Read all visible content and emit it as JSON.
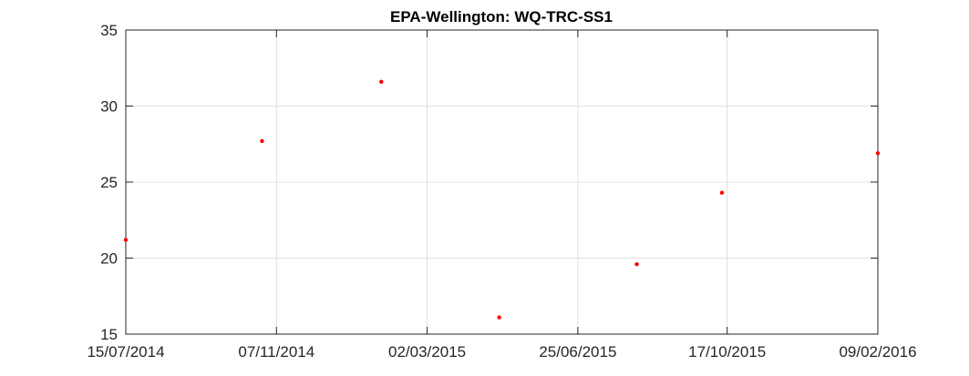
{
  "chart_data": {
    "type": "scatter",
    "title": "EPA-Wellington: WQ-TRC-SS1",
    "xlabel": "",
    "ylabel": "",
    "xlim": [
      "2014-07-15",
      "2016-02-09"
    ],
    "ylim": [
      15,
      35
    ],
    "grid": true,
    "x_ticks": [
      "15/07/2014",
      "07/11/2014",
      "02/03/2015",
      "25/06/2015",
      "17/10/2015",
      "09/02/2016"
    ],
    "y_ticks": [
      "15",
      "20",
      "25",
      "30",
      "35"
    ],
    "series": [
      {
        "color": "#ff0000",
        "marker": "dot",
        "points": [
          {
            "x": "2014-07-15",
            "y": 21.2
          },
          {
            "x": "2014-10-27",
            "y": 27.7
          },
          {
            "x": "2015-01-26",
            "y": 31.6
          },
          {
            "x": "2015-04-26",
            "y": 16.1
          },
          {
            "x": "2015-08-09",
            "y": 19.6
          },
          {
            "x": "2015-10-13",
            "y": 24.3
          },
          {
            "x": "2016-02-09",
            "y": 26.9
          }
        ]
      }
    ]
  }
}
